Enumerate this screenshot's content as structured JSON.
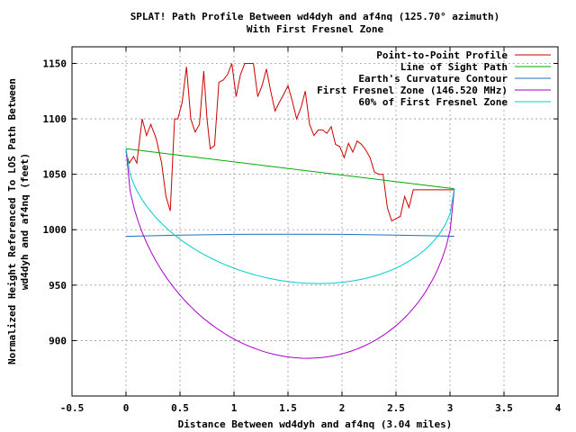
{
  "chart_data": {
    "type": "line",
    "title": "SPLAT! Path Profile Between wd4dyh and af4nq (125.70° azimuth)",
    "subtitle": "With First Fresnel Zone",
    "xlabel": "Distance Between wd4dyh and af4nq (3.04 miles)",
    "ylabel_line1": "Normalized Height Referenced To LOS Path Between",
    "ylabel_line2": "wd4dyh and af4nq (feet)",
    "xlim": [
      -0.5,
      4
    ],
    "ylim": [
      850,
      1165
    ],
    "xticks": [
      -0.5,
      0,
      0.5,
      1,
      1.5,
      2,
      2.5,
      3,
      3.5,
      4
    ],
    "xtick_labels": [
      "-0.5",
      "0",
      "0.5",
      "1",
      "1.5",
      "2",
      "2.5",
      "3",
      "3.5",
      "4"
    ],
    "yticks": [
      900,
      950,
      1000,
      1050,
      1100,
      1150
    ],
    "ytick_labels": [
      "900",
      "950",
      "1000",
      "1050",
      "1100",
      "1150"
    ],
    "grid": true,
    "legend_position": "top-right",
    "series": [
      {
        "name": "Point-to-Point Profile",
        "color": "#cc0000",
        "x": [
          0,
          0.03,
          0.07,
          0.1,
          0.15,
          0.19,
          0.23,
          0.28,
          0.33,
          0.37,
          0.41,
          0.45,
          0.48,
          0.52,
          0.56,
          0.6,
          0.64,
          0.68,
          0.72,
          0.75,
          0.78,
          0.82,
          0.86,
          0.9,
          0.94,
          0.98,
          1.02,
          1.06,
          1.1,
          1.14,
          1.18,
          1.22,
          1.26,
          1.3,
          1.34,
          1.38,
          1.42,
          1.46,
          1.5,
          1.54,
          1.58,
          1.62,
          1.66,
          1.7,
          1.74,
          1.78,
          1.82,
          1.86,
          1.9,
          1.94,
          1.98,
          2.02,
          2.06,
          2.1,
          2.14,
          2.18,
          2.22,
          2.26,
          2.3,
          2.34,
          2.38,
          2.42,
          2.46,
          2.5,
          2.54,
          2.58,
          2.62,
          2.66,
          2.7,
          2.74,
          2.78,
          2.82,
          2.86,
          2.9,
          2.94,
          2.98,
          3.02,
          3.04
        ],
        "y": [
          1070,
          1060,
          1066,
          1060,
          1100,
          1085,
          1095,
          1082,
          1060,
          1030,
          1017,
          1100,
          1100,
          1115,
          1147,
          1100,
          1088,
          1095,
          1143,
          1100,
          1073,
          1076,
          1133,
          1135,
          1140,
          1150,
          1120,
          1140,
          1150,
          1150,
          1150,
          1120,
          1130,
          1145,
          1125,
          1107,
          1115,
          1122,
          1130,
          1116,
          1100,
          1110,
          1125,
          1095,
          1085,
          1090,
          1090,
          1087,
          1093,
          1077,
          1075,
          1065,
          1078,
          1070,
          1080,
          1077,
          1072,
          1065,
          1052,
          1050,
          1050,
          1020,
          1008,
          1010,
          1012,
          1030,
          1020,
          1036,
          1036,
          1036,
          1036,
          1036,
          1036,
          1036,
          1036,
          1036,
          1036,
          1036
        ]
      },
      {
        "name": "Line of Sight Path",
        "color": "#00aa00",
        "x": [
          0,
          3.04
        ],
        "y": [
          1073,
          1037
        ]
      },
      {
        "name": "Earth's Curvature Contour",
        "color": "#1f6fbf",
        "x": [
          0,
          0.5,
          1,
          1.5,
          2,
          2.5,
          3,
          3.04
        ],
        "y": [
          994,
          995.2,
          995.8,
          996,
          995.8,
          995.2,
          994.2,
          994
        ]
      },
      {
        "name": "First Fresnel Zone (146.520 MHz)",
        "color": "#aa00cc",
        "fresnel_radius_mid": 170,
        "shape": "fresnel",
        "frac": 1.0
      },
      {
        "name": "60% of First Fresnel Zone",
        "color": "#00cccc",
        "shape": "fresnel",
        "frac": 0.6
      }
    ]
  }
}
